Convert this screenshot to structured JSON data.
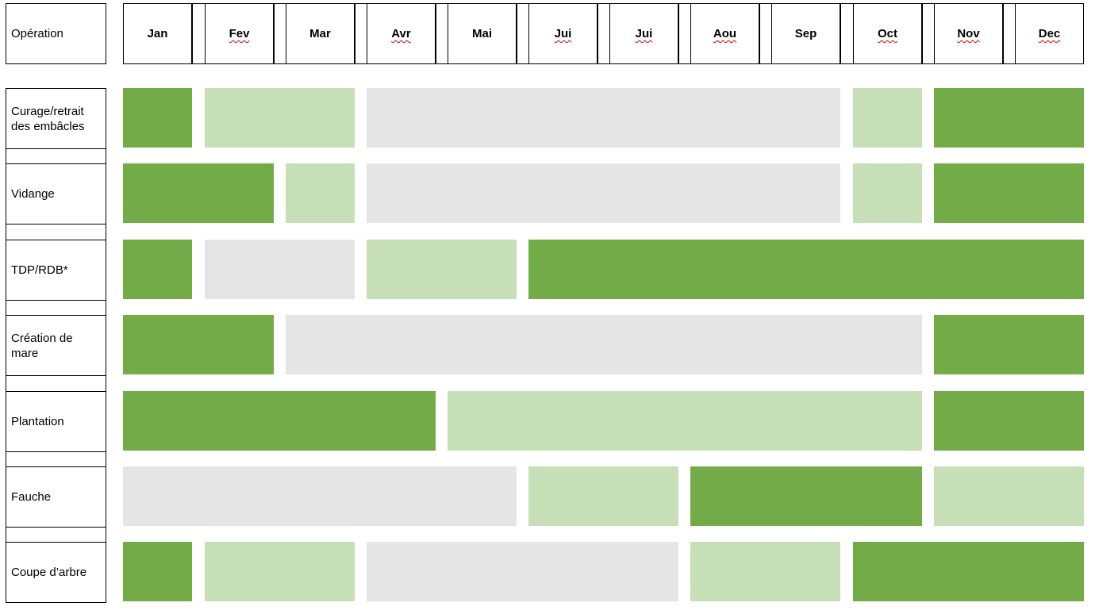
{
  "header": {
    "operation_label": "Opération",
    "months": [
      {
        "label": "Jan",
        "squiggle": false
      },
      {
        "label": "Fev",
        "squiggle": true
      },
      {
        "label": "Mar",
        "squiggle": false
      },
      {
        "label": "Avr",
        "squiggle": true
      },
      {
        "label": "Mai",
        "squiggle": false
      },
      {
        "label": "Jui",
        "squiggle": true
      },
      {
        "label": "Jui",
        "squiggle": true
      },
      {
        "label": "Aou",
        "squiggle": true
      },
      {
        "label": "Sep",
        "squiggle": false
      },
      {
        "label": "Oct",
        "squiggle": true
      },
      {
        "label": "Nov",
        "squiggle": true
      },
      {
        "label": "Dec",
        "squiggle": true
      }
    ]
  },
  "legend_colors": {
    "dark": "#72ab47",
    "light": "#c6dfb6",
    "grey": "#e5e5e5"
  },
  "rows": [
    {
      "label": "Curage/retrait\ndes embâcles",
      "months": [
        "dark",
        "light",
        "light",
        "grey",
        "grey",
        "grey",
        "grey",
        "grey",
        "grey",
        "light",
        "dark",
        "dark"
      ]
    },
    {
      "label": "Vidange",
      "months": [
        "dark",
        "dark",
        "light",
        "grey",
        "grey",
        "grey",
        "grey",
        "grey",
        "grey",
        "light",
        "dark",
        "dark"
      ]
    },
    {
      "label": "TDP/RDB*",
      "months": [
        "dark",
        "grey",
        "grey",
        "light",
        "light",
        "dark",
        "dark",
        "dark",
        "dark",
        "dark",
        "dark",
        "dark"
      ]
    },
    {
      "label": "Création de\nmare",
      "months": [
        "dark",
        "dark",
        "grey",
        "grey",
        "grey",
        "grey",
        "grey",
        "grey",
        "grey",
        "grey",
        "dark",
        "dark"
      ]
    },
    {
      "label": "Plantation",
      "months": [
        "dark",
        "dark",
        "dark",
        "dark",
        "light",
        "light",
        "light",
        "light",
        "light",
        "light",
        "dark",
        "dark"
      ]
    },
    {
      "label": "Fauche",
      "months": [
        "grey",
        "grey",
        "grey",
        "grey",
        "grey",
        "light",
        "light",
        "dark",
        "dark",
        "dark",
        "light",
        "light"
      ]
    },
    {
      "label": "Coupe d’arbre",
      "months": [
        "dark",
        "light",
        "light",
        "grey",
        "grey",
        "grey",
        "grey",
        "light",
        "light",
        "dark",
        "dark",
        "dark"
      ]
    }
  ]
}
